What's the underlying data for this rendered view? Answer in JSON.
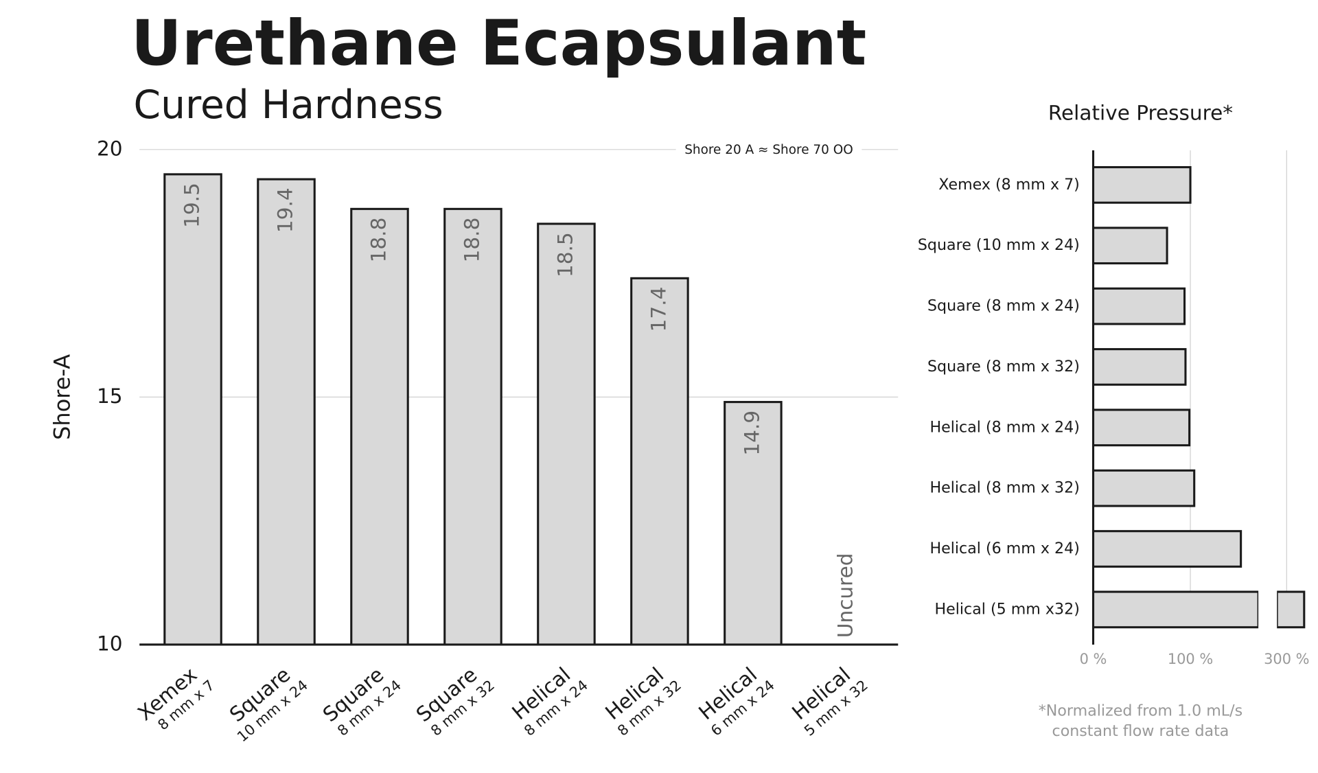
{
  "chart_data": [
    {
      "type": "bar",
      "title": "Urethane Ecapsulant",
      "subtitle": "Cured Hardness",
      "ylabel": "Shore-A",
      "categories": [
        "Xemex",
        "Square",
        "Square",
        "Square",
        "Helical",
        "Helical",
        "Helical",
        "Helical"
      ],
      "category_details": [
        "8 mm x 7",
        "10 mm x 24",
        "8 mm x 24",
        "8 mm x 32",
        "8 mm x 24",
        "8 mm x 32",
        "6 mm x 24",
        "5 mm x 32"
      ],
      "values": [
        19.5,
        19.4,
        18.8,
        18.8,
        18.5,
        17.4,
        14.9,
        null
      ],
      "missing_label": "Uncured",
      "annotation": "Shore 20 A ≈ Shore 70 OO",
      "color": "#d9d9d9",
      "ylim": [
        10,
        20
      ],
      "yticks": [
        10,
        15,
        20
      ],
      "grid": true
    },
    {
      "type": "hbar",
      "title": "Relative Pressure*",
      "categories": [
        "Xemex (8 mm x 7)",
        "Square (10 mm x 24)",
        "Square (8 mm x 24)",
        "Square (8 mm x 32)",
        "Helical (8 mm x 24)",
        "Helical (8 mm x 32)",
        "Helical (6 mm x 24)",
        "Helical (5 mm x32)"
      ],
      "values": [
        100,
        76,
        94,
        95,
        99,
        104,
        152,
        318
      ],
      "color": "#d9d9d9",
      "xlim": [
        0,
        320
      ],
      "xbreak": [
        170,
        290
      ],
      "xticks": [
        {
          "value": 0,
          "label": "0 %"
        },
        {
          "value": 100,
          "label": "100 %"
        },
        {
          "value": 300,
          "label": "300 %"
        }
      ],
      "grid": true,
      "footnote": [
        "*Normalized from 1.0 mL/s",
        "constant flow rate data"
      ]
    }
  ]
}
